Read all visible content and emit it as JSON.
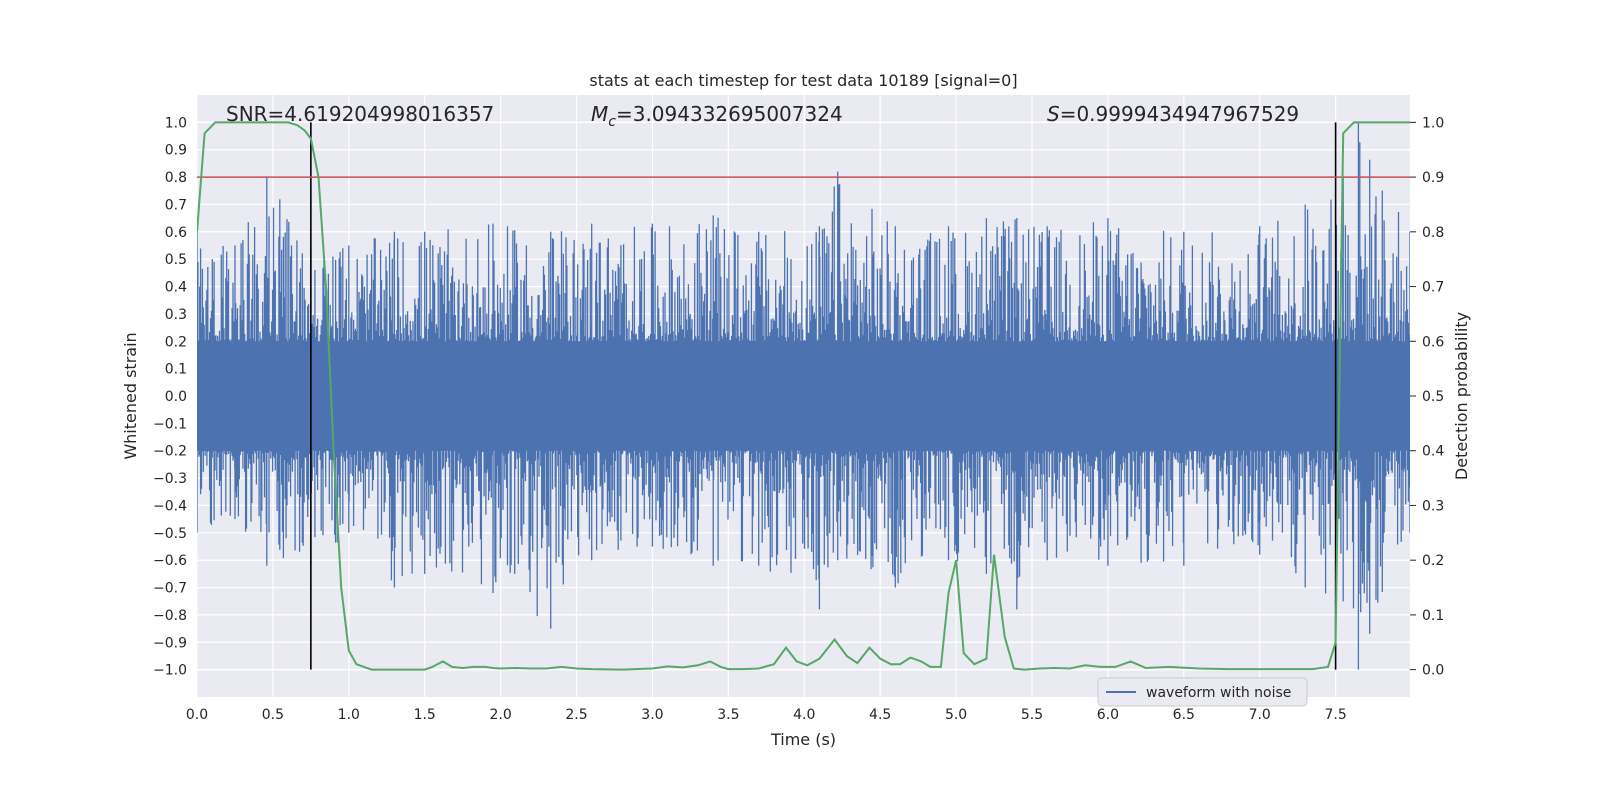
{
  "chart_data": {
    "type": "line",
    "title": "stats at each timestep for test data 10189 [signal=0]",
    "xlabel": "Time (s)",
    "ylabel": "Whitened strain",
    "ylabel_right": "Detection probability",
    "xlim": [
      0,
      7.99
    ],
    "ylim": [
      -1.1,
      1.1
    ],
    "ylim_right": [
      -0.05,
      1.05
    ],
    "x_ticks": [
      "0.0",
      "0.5",
      "1.0",
      "1.5",
      "2.0",
      "2.5",
      "3.0",
      "3.5",
      "4.0",
      "4.5",
      "5.0",
      "5.5",
      "6.0",
      "6.5",
      "7.0",
      "7.5"
    ],
    "y_ticks": [
      "−1.0",
      "−0.9",
      "−0.8",
      "−0.7",
      "−0.6",
      "−0.5",
      "−0.4",
      "−0.3",
      "−0.2",
      "−0.1",
      "0.0",
      "0.1",
      "0.2",
      "0.3",
      "0.4",
      "0.5",
      "0.6",
      "0.7",
      "0.8",
      "0.9",
      "1.0"
    ],
    "y_ticks_right": [
      "0.0",
      "0.1",
      "0.2",
      "0.3",
      "0.4",
      "0.5",
      "0.6",
      "0.7",
      "0.8",
      "0.9",
      "1.0"
    ],
    "grid": true,
    "legend": {
      "placement": "lower-right",
      "entries": [
        "waveform with noise"
      ]
    },
    "annotations": {
      "snr": "SNR=4.619204998016357",
      "mc_prefix": "M",
      "mc_sub": "c",
      "mc_value": "=3.094332695007324",
      "s_prefix": "S",
      "s_value": "=0.9999434947967529"
    },
    "threshold_right_axis": 0.9,
    "vertical_markers_s": [
      0.75,
      7.5
    ],
    "series": [
      {
        "name": "waveform with noise",
        "axis": "left",
        "color": "#4c72b0",
        "envelope": {
          "x": [
            0.0,
            0.25,
            0.46,
            0.75,
            1.0,
            1.3,
            1.5,
            1.95,
            2.33,
            2.6,
            3.0,
            3.4,
            3.7,
            4.1,
            4.22,
            4.6,
            4.95,
            5.2,
            5.4,
            5.6,
            6.0,
            6.5,
            7.0,
            7.3,
            7.55,
            7.65,
            7.99
          ],
          "max": [
            0.6,
            0.55,
            0.8,
            0.55,
            0.55,
            0.6,
            0.6,
            0.63,
            0.6,
            0.63,
            0.63,
            0.66,
            0.6,
            0.62,
            0.82,
            0.62,
            0.62,
            0.65,
            0.65,
            0.62,
            0.65,
            0.6,
            0.62,
            0.7,
            0.8,
            1.0,
            0.6
          ],
          "min": [
            -0.5,
            -0.45,
            -0.62,
            -0.62,
            -0.5,
            -0.7,
            -0.65,
            -0.72,
            -0.85,
            -0.6,
            -0.55,
            -0.62,
            -0.62,
            -0.78,
            -0.6,
            -0.7,
            -0.6,
            -0.65,
            -0.78,
            -0.6,
            -0.62,
            -0.62,
            -0.58,
            -0.7,
            -0.75,
            -1.0,
            -0.5
          ]
        }
      },
      {
        "name": "",
        "axis": "right",
        "color": "#55a868",
        "x": [
          0.0,
          0.05,
          0.12,
          0.2,
          0.3,
          0.4,
          0.5,
          0.6,
          0.66,
          0.71,
          0.75,
          0.8,
          0.85,
          0.9,
          0.95,
          1.0,
          1.05,
          1.1,
          1.15,
          1.2,
          1.3,
          1.4,
          1.5,
          1.55,
          1.62,
          1.68,
          1.75,
          1.82,
          1.9,
          1.95,
          2.0,
          2.1,
          2.2,
          2.3,
          2.4,
          2.5,
          2.6,
          2.8,
          3.0,
          3.1,
          3.2,
          3.3,
          3.38,
          3.45,
          3.5,
          3.6,
          3.7,
          3.8,
          3.88,
          3.95,
          4.02,
          4.1,
          4.2,
          4.28,
          4.35,
          4.43,
          4.5,
          4.57,
          4.63,
          4.7,
          4.77,
          4.83,
          4.9,
          4.95,
          5.0,
          5.05,
          5.12,
          5.2,
          5.25,
          5.32,
          5.38,
          5.45,
          5.55,
          5.65,
          5.75,
          5.85,
          5.95,
          6.05,
          6.15,
          6.25,
          6.4,
          6.6,
          6.8,
          7.0,
          7.2,
          7.35,
          7.45,
          7.5,
          7.55,
          7.62,
          7.7,
          7.99
        ],
        "y": [
          0.8,
          0.98,
          1.0,
          1.0,
          1.0,
          1.0,
          1.0,
          1.0,
          0.995,
          0.985,
          0.97,
          0.9,
          0.7,
          0.4,
          0.15,
          0.035,
          0.01,
          0.005,
          0.0,
          0.0,
          0.0,
          0.0,
          0.0,
          0.005,
          0.015,
          0.005,
          0.003,
          0.005,
          0.005,
          0.003,
          0.002,
          0.003,
          0.002,
          0.002,
          0.005,
          0.002,
          0.001,
          0.0,
          0.002,
          0.006,
          0.004,
          0.008,
          0.015,
          0.005,
          0.001,
          0.001,
          0.002,
          0.01,
          0.04,
          0.015,
          0.008,
          0.02,
          0.055,
          0.025,
          0.012,
          0.04,
          0.02,
          0.01,
          0.01,
          0.022,
          0.015,
          0.005,
          0.005,
          0.14,
          0.2,
          0.03,
          0.01,
          0.02,
          0.21,
          0.06,
          0.002,
          0.0,
          0.002,
          0.003,
          0.002,
          0.008,
          0.005,
          0.005,
          0.015,
          0.003,
          0.005,
          0.002,
          0.001,
          0.001,
          0.001,
          0.001,
          0.005,
          0.05,
          0.98,
          1.0,
          1.0,
          1.0
        ]
      }
    ],
    "colors": {
      "background": "#eaeaf2",
      "grid": "#ffffff",
      "waveform": "#4c72b0",
      "probability": "#55a868",
      "threshold": "#c44e52",
      "markers": "#000000"
    }
  }
}
